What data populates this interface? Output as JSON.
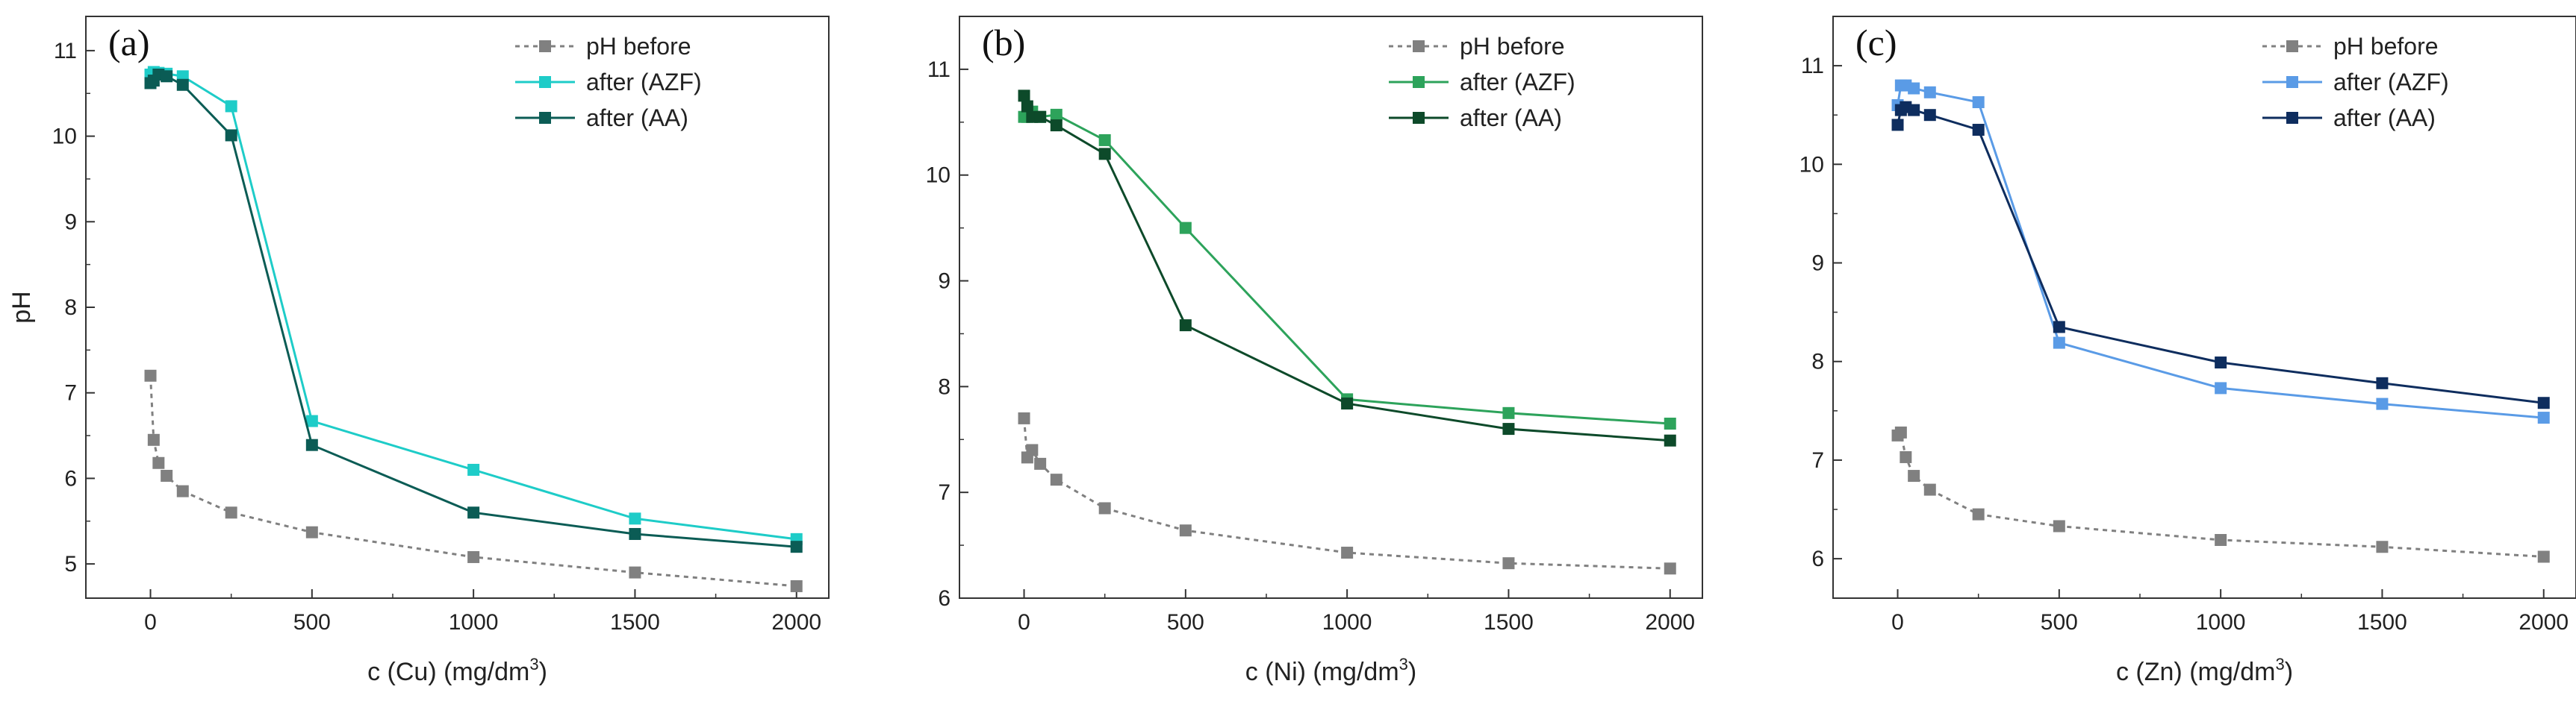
{
  "chart_data": [
    {
      "type": "line",
      "panel_label": "(a)",
      "xlabel": "c (Cu) (mg/dm",
      "xlabel_sup": "3",
      "xlabel_end": ")",
      "ylabel": "pH",
      "xlim": [
        -200,
        2100
      ],
      "ylim": [
        4.6,
        11.4
      ],
      "xticks": [
        0,
        500,
        1000,
        1500,
        2000
      ],
      "xtick_labels": [
        "0",
        "500",
        "1000",
        "1500",
        "2000"
      ],
      "yticks": [
        5,
        6,
        7,
        8,
        9,
        10,
        11
      ],
      "ytick_labels": [
        "5",
        "6",
        "7",
        "8",
        "9",
        "10",
        "11"
      ],
      "legend_position": "top-right",
      "series": [
        {
          "name": "pH before",
          "color": "#808080",
          "dashed": true,
          "x": [
            0,
            10,
            25,
            50,
            100,
            250,
            500,
            1000,
            1500,
            2000
          ],
          "y": [
            7.2,
            6.45,
            6.18,
            6.03,
            5.85,
            5.6,
            5.37,
            5.08,
            4.9,
            4.74
          ]
        },
        {
          "name": "after (AZF)",
          "color": "#1ECCC8",
          "dashed": false,
          "x": [
            0,
            10,
            25,
            50,
            100,
            250,
            500,
            1000,
            1500,
            2000
          ],
          "y": [
            10.72,
            10.75,
            10.74,
            10.73,
            10.7,
            10.35,
            6.67,
            6.1,
            5.53,
            5.29
          ]
        },
        {
          "name": "after (AA)",
          "color": "#0B5C55",
          "dashed": false,
          "x": [
            0,
            10,
            25,
            50,
            100,
            250,
            500,
            1000,
            1500,
            2000
          ],
          "y": [
            10.62,
            10.65,
            10.72,
            10.7,
            10.6,
            10.01,
            6.39,
            5.6,
            5.35,
            5.2
          ]
        }
      ]
    },
    {
      "type": "line",
      "panel_label": "(b)",
      "xlabel": "c (Ni) (mg/dm",
      "xlabel_sup": "3",
      "xlabel_end": ")",
      "ylabel": "",
      "xlim": [
        -200,
        2100
      ],
      "ylim": [
        6,
        11.5
      ],
      "xticks": [
        0,
        500,
        1000,
        1500,
        2000
      ],
      "xtick_labels": [
        "0",
        "500",
        "1000",
        "1500",
        "2000"
      ],
      "yticks": [
        6,
        7,
        8,
        9,
        10,
        11
      ],
      "ytick_labels": [
        "6",
        "7",
        "8",
        "9",
        "10",
        "11"
      ],
      "legend_position": "top-right",
      "series": [
        {
          "name": "pH before",
          "color": "#808080",
          "dashed": true,
          "x": [
            0,
            10,
            25,
            50,
            100,
            250,
            500,
            1000,
            1500,
            2000
          ],
          "y": [
            7.7,
            7.33,
            7.4,
            7.27,
            7.12,
            6.85,
            6.64,
            6.43,
            6.33,
            6.28
          ]
        },
        {
          "name": "after (AZF)",
          "color": "#2DA35B",
          "dashed": false,
          "x": [
            0,
            10,
            25,
            50,
            100,
            250,
            500,
            1000,
            1500,
            2000
          ],
          "y": [
            10.55,
            10.55,
            10.6,
            10.55,
            10.57,
            10.33,
            9.5,
            7.88,
            7.75,
            7.65
          ]
        },
        {
          "name": "after (AA)",
          "color": "#0D4A2A",
          "dashed": false,
          "x": [
            0,
            10,
            25,
            50,
            100,
            250,
            500,
            1000,
            1500,
            2000
          ],
          "y": [
            10.75,
            10.65,
            10.55,
            10.55,
            10.47,
            10.2,
            8.58,
            7.84,
            7.6,
            7.49
          ]
        }
      ]
    },
    {
      "type": "line",
      "panel_label": "(c)",
      "xlabel": "c (Zn) (mg/dm",
      "xlabel_sup": "3",
      "xlabel_end": ")",
      "ylabel": "",
      "xlim": [
        -200,
        2100
      ],
      "ylim": [
        5.6,
        11.5
      ],
      "xticks": [
        0,
        500,
        1000,
        1500,
        2000
      ],
      "xtick_labels": [
        "0",
        "500",
        "1000",
        "1500",
        "2000"
      ],
      "yticks": [
        6,
        7,
        8,
        9,
        10,
        11
      ],
      "ytick_labels": [
        "6",
        "7",
        "8",
        "9",
        "10",
        "11"
      ],
      "legend_position": "top-right",
      "series": [
        {
          "name": "pH before",
          "color": "#808080",
          "dashed": true,
          "x": [
            0,
            10,
            25,
            50,
            100,
            250,
            500,
            1000,
            1500,
            2000
          ],
          "y": [
            7.25,
            7.28,
            7.03,
            6.84,
            6.7,
            6.45,
            6.33,
            6.19,
            6.12,
            6.02
          ]
        },
        {
          "name": "after (AZF)",
          "color": "#5A9BE6",
          "dashed": false,
          "x": [
            0,
            10,
            25,
            50,
            100,
            250,
            500,
            1000,
            1500,
            2000
          ],
          "y": [
            10.6,
            10.8,
            10.8,
            10.77,
            10.73,
            10.63,
            8.19,
            7.73,
            7.57,
            7.43
          ]
        },
        {
          "name": "after (AA)",
          "color": "#0E2D5E",
          "dashed": false,
          "x": [
            0,
            10,
            25,
            50,
            100,
            250,
            500,
            1000,
            1500,
            2000
          ],
          "y": [
            10.4,
            10.55,
            10.58,
            10.55,
            10.5,
            10.35,
            8.35,
            7.99,
            7.78,
            7.58
          ]
        }
      ]
    }
  ]
}
